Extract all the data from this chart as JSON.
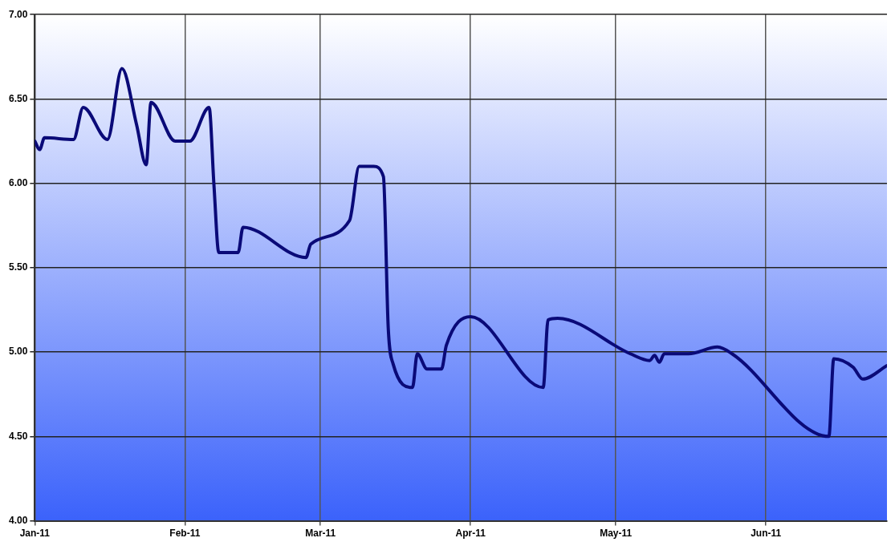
{
  "chart_data": {
    "type": "line",
    "x": [
      "2011-01-01",
      "2011-01-02",
      "2011-01-03",
      "2011-01-09",
      "2011-01-11",
      "2011-01-16",
      "2011-01-19",
      "2011-01-22",
      "2011-01-24",
      "2011-01-25",
      "2011-01-30",
      "2011-02-02",
      "2011-02-06",
      "2011-02-07",
      "2011-02-08",
      "2011-02-12",
      "2011-02-13",
      "2011-02-26",
      "2011-02-27",
      "2011-03-07",
      "2011-03-09",
      "2011-03-12",
      "2011-03-14",
      "2011-03-15",
      "2011-03-16",
      "2011-03-20",
      "2011-03-21",
      "2011-03-23",
      "2011-03-26",
      "2011-03-27",
      "2011-04-01",
      "2011-04-16",
      "2011-04-17",
      "2011-04-19",
      "2011-05-04",
      "2011-05-08",
      "2011-05-09",
      "2011-05-10",
      "2011-05-11",
      "2011-05-16",
      "2011-05-22",
      "2011-05-25",
      "2011-06-14",
      "2011-06-15",
      "2011-06-19",
      "2011-06-21",
      "2011-06-26"
    ],
    "series": [
      {
        "color": "#0a0a78",
        "values": [
          6.25,
          6.2,
          6.27,
          6.26,
          6.45,
          6.26,
          6.68,
          6.35,
          6.11,
          6.48,
          6.25,
          6.25,
          6.45,
          5.99,
          5.59,
          5.59,
          5.74,
          5.56,
          5.64,
          5.78,
          6.1,
          6.1,
          6.04,
          5.14,
          4.93,
          4.79,
          4.99,
          4.9,
          4.9,
          5.04,
          5.21,
          4.79,
          5.19,
          5.2,
          4.99,
          4.95,
          4.98,
          4.94,
          4.99,
          4.99,
          5.03,
          4.99,
          4.5,
          4.96,
          4.91,
          4.84,
          4.92
        ]
      }
    ],
    "xlim": [
      "2011-01-01",
      "2011-06-26"
    ],
    "xticks": [
      {
        "value": "2011-01-01",
        "label": "Jan-11"
      },
      {
        "value": "2011-02-01",
        "label": "Feb-11"
      },
      {
        "value": "2011-03-01",
        "label": "Mar-11"
      },
      {
        "value": "2011-04-01",
        "label": "Apr-11"
      },
      {
        "value": "2011-05-01",
        "label": "May-11"
      },
      {
        "value": "2011-06-01",
        "label": "Jun-11"
      }
    ],
    "ylim": [
      4,
      7
    ],
    "yticks": [
      {
        "value": 4,
        "label": "4.00"
      },
      {
        "value": 4.5,
        "label": "4.50"
      },
      {
        "value": 5,
        "label": "5.00"
      },
      {
        "value": 5.5,
        "label": "5.50"
      },
      {
        "value": 6,
        "label": "6.00"
      },
      {
        "value": 6.5,
        "label": "6.50"
      },
      {
        "value": 7,
        "label": "7.00"
      }
    ],
    "grid": true,
    "legend": false,
    "marker": "none",
    "line_style": "solid"
  }
}
